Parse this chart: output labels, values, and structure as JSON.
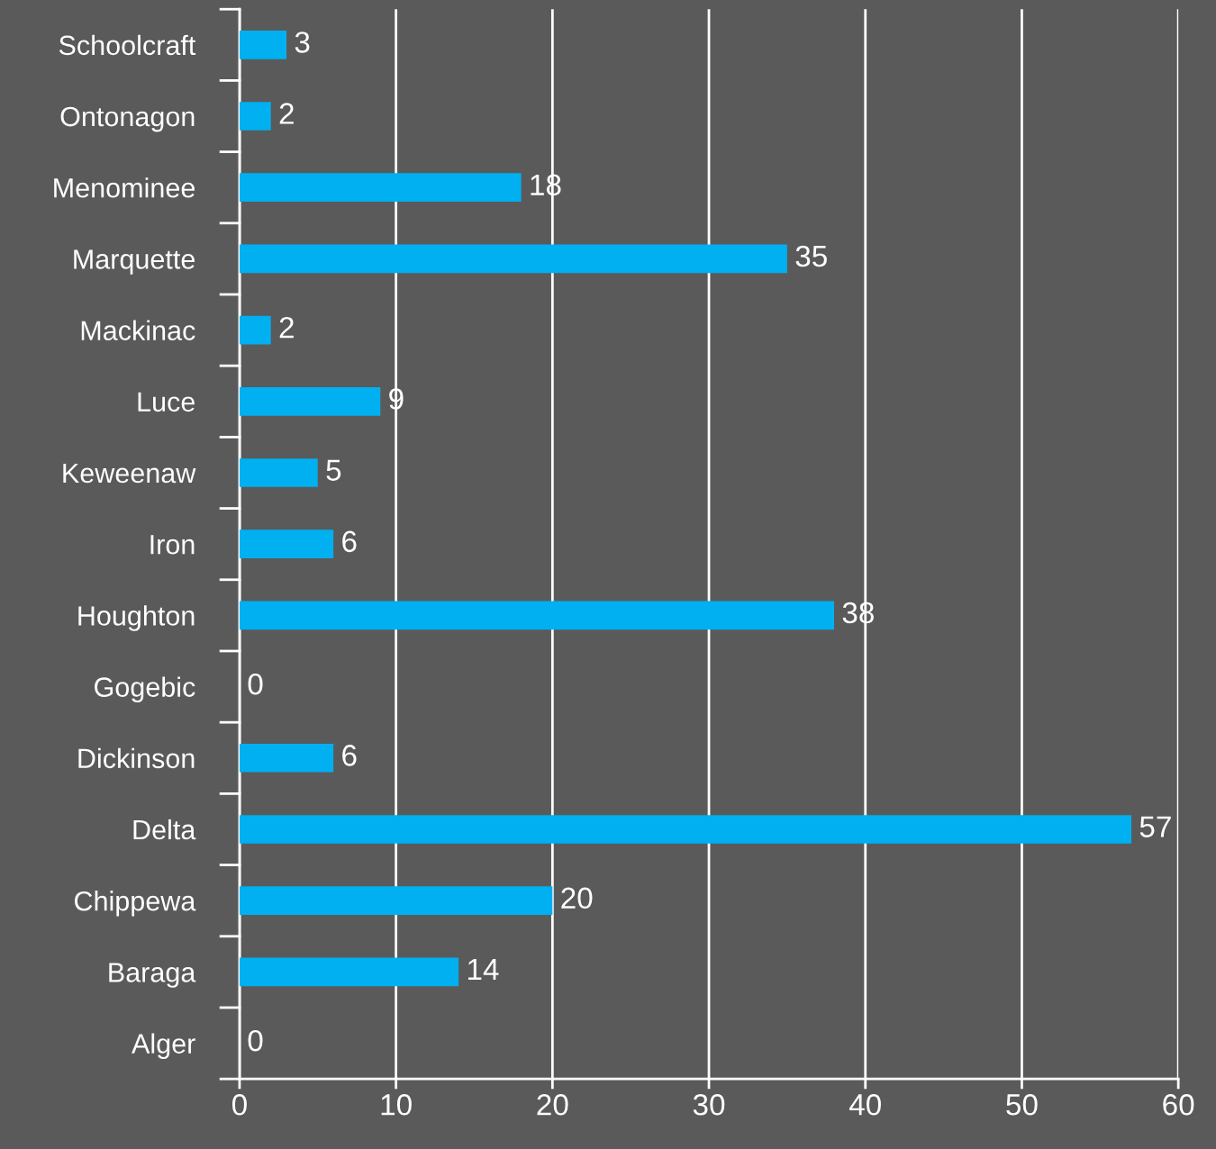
{
  "chart_data": {
    "type": "bar",
    "orientation": "horizontal",
    "categories": [
      "Schoolcraft",
      "Ontonagon",
      "Menominee",
      "Marquette",
      "Mackinac",
      "Luce",
      "Keweenaw",
      "Iron",
      "Houghton",
      "Gogebic",
      "Dickinson",
      "Delta",
      "Chippewa",
      "Baraga",
      "Alger"
    ],
    "values": [
      3,
      2,
      18,
      35,
      2,
      9,
      5,
      6,
      38,
      0,
      6,
      57,
      20,
      14,
      0
    ],
    "color": "#00b0f0",
    "xlim": [
      0,
      60
    ],
    "xticks": [
      0,
      10,
      20,
      30,
      40,
      50,
      60
    ],
    "grid": "x",
    "data_labels": true
  }
}
